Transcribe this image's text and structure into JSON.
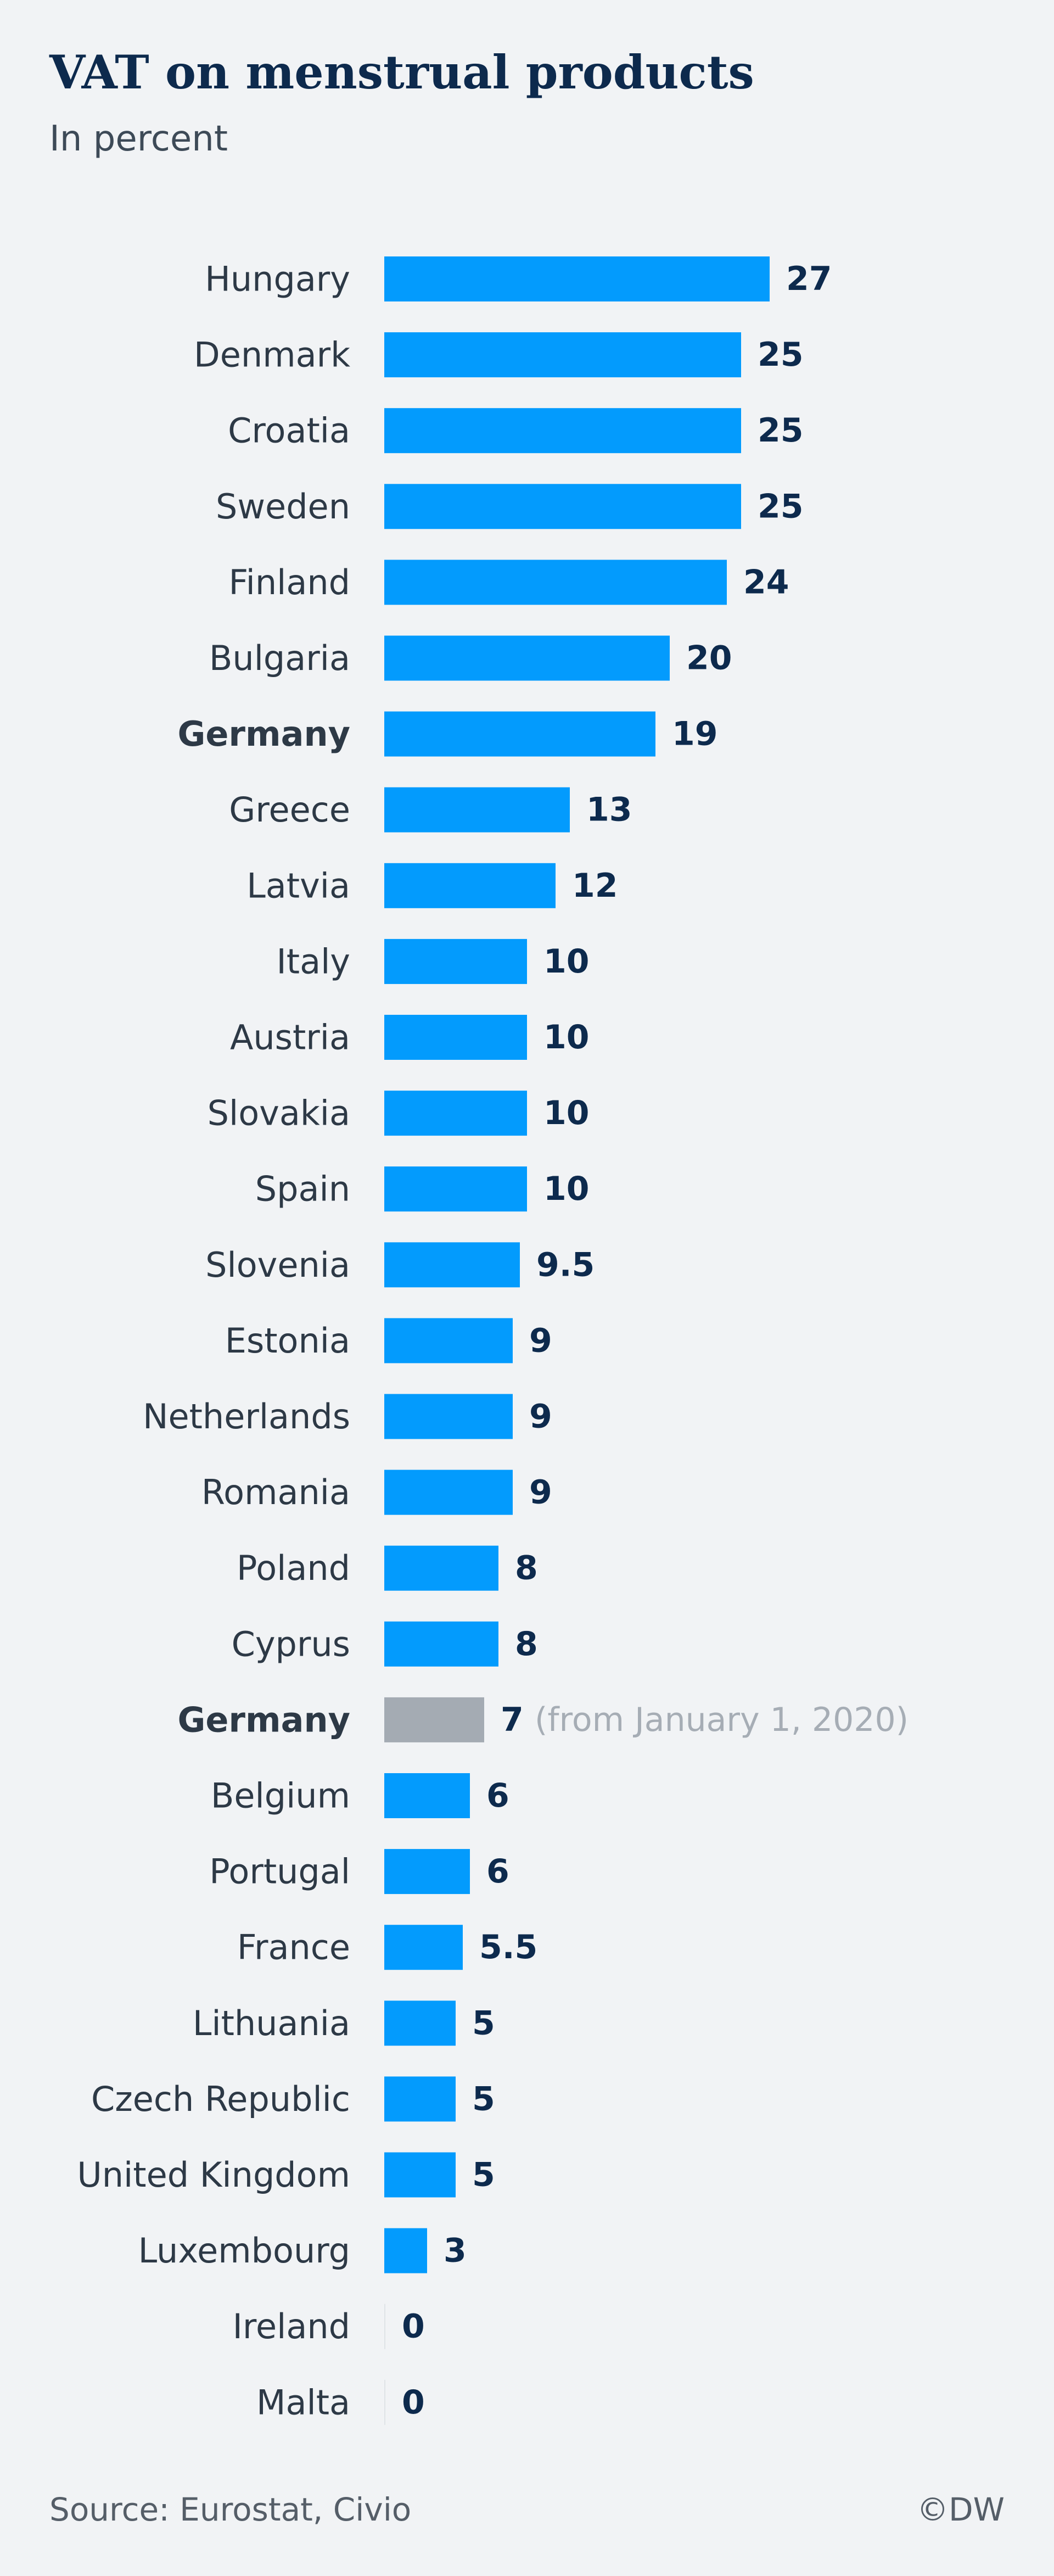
{
  "title": "VAT on menstrual products",
  "subtitle": "In percent",
  "source": "Source: Eurostat, Civio",
  "credit": "©DW",
  "colors": {
    "bar": "#039bfd",
    "bar_highlight": "#a4abb3",
    "value_text": "#0d2a4d",
    "note_text": "#a6adb5",
    "background": "#f1f3f5"
  },
  "chart_data": {
    "type": "bar",
    "orientation": "horizontal",
    "title": "VAT on menstrual products",
    "subtitle": "In percent",
    "xlim": [
      0,
      27
    ],
    "grid": false,
    "categories": [
      "Hungary",
      "Denmark",
      "Croatia",
      "Sweden",
      "Finland",
      "Bulgaria",
      "Germany",
      "Greece",
      "Latvia",
      "Italy",
      "Austria",
      "Slovakia",
      "Spain",
      "Slovenia",
      "Estonia",
      "Netherlands",
      "Romania",
      "Poland",
      "Cyprus",
      "Germany",
      "Belgium",
      "Portugal",
      "France",
      "Lithuania",
      "Czech Republic",
      "United Kingdom",
      "Luxembourg",
      "Ireland",
      "Malta"
    ],
    "values": [
      27,
      25,
      25,
      25,
      24,
      20,
      19,
      13,
      12,
      10,
      10,
      10,
      10,
      9.5,
      9,
      9,
      9,
      8,
      8,
      7,
      6,
      6,
      5.5,
      5,
      5,
      5,
      3,
      0,
      0
    ],
    "value_labels": [
      "27",
      "25",
      "25",
      "25",
      "24",
      "20",
      "19",
      "13",
      "12",
      "10",
      "10",
      "10",
      "10",
      "9.5",
      "9",
      "9",
      "9",
      "8",
      "8",
      "7",
      "6",
      "6",
      "5.5",
      "5",
      "5",
      "5",
      "3",
      "0",
      "0"
    ],
    "bold_categories": [
      6,
      19
    ],
    "highlighted": [
      19
    ],
    "annotations": [
      {
        "index": 19,
        "text": "(from  January 1, 2020)"
      }
    ]
  }
}
